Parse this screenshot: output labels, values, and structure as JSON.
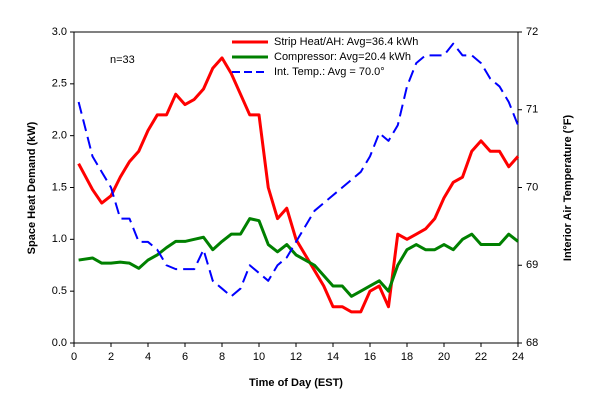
{
  "chart_data": {
    "type": "line",
    "xlabel": "Time of Day (EST)",
    "ylabel": "Space Heat Demand (kW)",
    "y2label": "Interior Air Temperature (°F)",
    "annotation": "n=33",
    "x": [
      0.25,
      1,
      1.5,
      2,
      2.5,
      3,
      3.5,
      4,
      4.5,
      5,
      5.5,
      6,
      6.5,
      7,
      7.5,
      8,
      8.5,
      9,
      9.5,
      10,
      10.5,
      11,
      11.5,
      12,
      12.5,
      13,
      13.5,
      14,
      14.5,
      15,
      15.5,
      16,
      16.5,
      17,
      17.5,
      18,
      18.5,
      19,
      19.5,
      20,
      20.5,
      21,
      21.5,
      22,
      22.5,
      23,
      23.5,
      24
    ],
    "series": [
      {
        "name": "Strip Heat/AH: Avg=36.4 kWh",
        "color": "#ff0000",
        "dash": false,
        "values": [
          1.73,
          1.48,
          1.35,
          1.42,
          1.6,
          1.75,
          1.85,
          2.05,
          2.2,
          2.2,
          2.4,
          2.3,
          2.35,
          2.45,
          2.65,
          2.75,
          2.6,
          2.4,
          2.2,
          2.2,
          1.5,
          1.2,
          1.3,
          1.0,
          0.85,
          0.7,
          0.55,
          0.35,
          0.35,
          0.3,
          0.3,
          0.5,
          0.55,
          0.35,
          1.05,
          1.0,
          1.05,
          1.1,
          1.2,
          1.4,
          1.55,
          1.6,
          1.85,
          1.95,
          1.85,
          1.85,
          1.7,
          1.8
        ]
      },
      {
        "name": "Compressor: Avg=20.4 kWh",
        "color": "#008000",
        "dash": false,
        "values": [
          0.8,
          0.82,
          0.77,
          0.77,
          0.78,
          0.77,
          0.72,
          0.8,
          0.85,
          0.92,
          0.98,
          0.98,
          1.0,
          1.02,
          0.9,
          0.98,
          1.05,
          1.05,
          1.2,
          1.18,
          0.95,
          0.88,
          0.95,
          0.85,
          0.8,
          0.75,
          0.65,
          0.55,
          0.55,
          0.45,
          0.5,
          0.55,
          0.6,
          0.5,
          0.75,
          0.9,
          0.95,
          0.9,
          0.9,
          0.95,
          0.9,
          1.0,
          1.05,
          0.95,
          0.95,
          0.95,
          1.05,
          0.98
        ]
      },
      {
        "name": "Int. Temp.: Avg = 70.0°",
        "color": "#0000ff",
        "dash": true,
        "axis": "y2",
        "values": [
          71.1,
          70.4,
          70.2,
          70.0,
          69.6,
          69.6,
          69.3,
          69.3,
          69.2,
          69.0,
          68.95,
          68.95,
          68.95,
          69.2,
          68.8,
          68.7,
          68.6,
          68.7,
          69.0,
          68.9,
          68.8,
          69.0,
          69.1,
          69.3,
          69.5,
          69.7,
          69.8,
          69.9,
          70.0,
          70.1,
          70.2,
          70.4,
          70.7,
          70.6,
          70.8,
          71.3,
          71.6,
          71.7,
          71.7,
          71.7,
          71.85,
          71.7,
          71.7,
          71.6,
          71.4,
          71.3,
          71.1,
          70.8
        ]
      }
    ],
    "xlim": [
      0,
      24
    ],
    "xticks": [
      0,
      2,
      4,
      6,
      8,
      10,
      12,
      14,
      16,
      18,
      20,
      22,
      24
    ],
    "ylim": [
      0,
      3
    ],
    "yticks": [
      {
        "value": 0,
        "label": "0.0"
      },
      {
        "value": 0.5,
        "label": "0.5"
      },
      {
        "value": 1,
        "label": "1.0"
      },
      {
        "value": 1.5,
        "label": "1.5"
      },
      {
        "value": 2,
        "label": "2.0"
      },
      {
        "value": 2.5,
        "label": "2.5"
      },
      {
        "value": 3,
        "label": "3.0"
      }
    ],
    "y2lim": [
      68,
      72
    ],
    "y2ticks": [
      68,
      69,
      70,
      71,
      72
    ],
    "grid": false,
    "legend": "upper right"
  }
}
